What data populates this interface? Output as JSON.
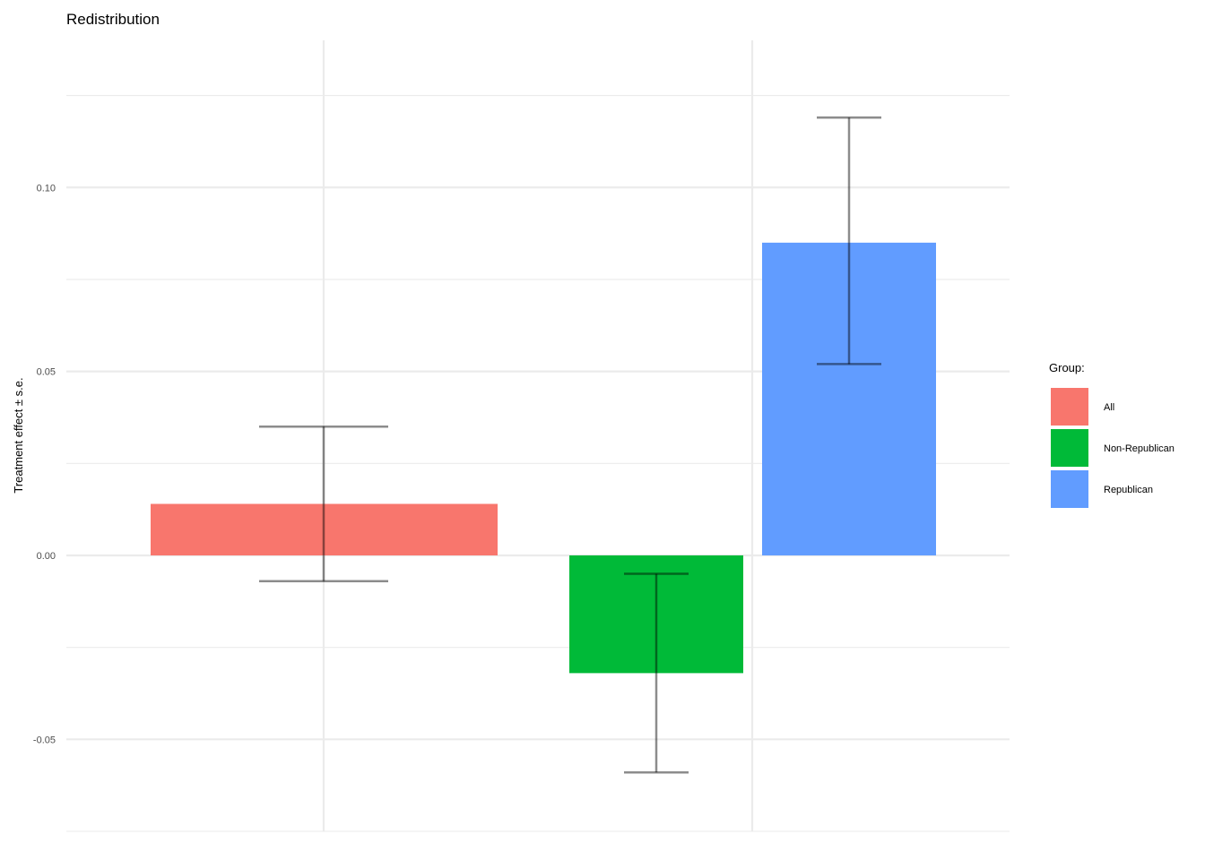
{
  "chart_data": {
    "type": "bar",
    "title": "Redistribution",
    "xlabel": "",
    "ylabel": "Treatment effect ± s.e.",
    "ylim": [
      -0.075,
      0.14
    ],
    "yticks": [
      -0.05,
      0.0,
      0.05,
      0.1
    ],
    "ytick_labels": [
      "-0.05",
      "0.00",
      "0.05",
      "0.10"
    ],
    "grid": true,
    "legend": {
      "title": "Group:",
      "position": "right",
      "entries": [
        "All",
        "Non-Republican",
        "Republican"
      ]
    },
    "series": [
      {
        "name": "All",
        "value": 0.014,
        "se_low": -0.007,
        "se_high": 0.035,
        "color": "#F8766D"
      },
      {
        "name": "Non-Republican",
        "value": -0.032,
        "se_low": -0.059,
        "se_high": -0.005,
        "color": "#00BA38"
      },
      {
        "name": "Republican",
        "value": 0.085,
        "se_low": 0.052,
        "se_high": 0.119,
        "color": "#619CFF"
      }
    ]
  }
}
